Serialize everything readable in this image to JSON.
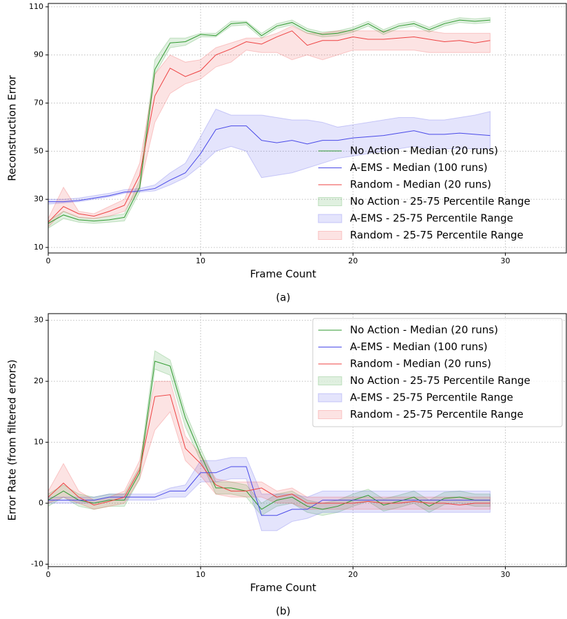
{
  "chart_data": [
    {
      "type": "line",
      "xlabel": "Frame Count",
      "ylabel": "Reconstruction Error",
      "caption": "(a)",
      "xlim": [
        0,
        34
      ],
      "ylim": [
        7.7,
        111.4
      ],
      "xticks": [
        0,
        10,
        20,
        30
      ],
      "yticks": [
        10,
        30,
        50,
        70,
        90,
        110
      ],
      "grid": true,
      "legend": "lower right",
      "legend_frame": false,
      "x": [
        0,
        1,
        2,
        3,
        4,
        5,
        6,
        7,
        8,
        9,
        10,
        11,
        12,
        13,
        14,
        15,
        16,
        17,
        18,
        19,
        20,
        21,
        22,
        23,
        24,
        25,
        26,
        27,
        28,
        29
      ],
      "series": [
        {
          "name": "No Action - Median (20 runs)",
          "color": "#2e9a2e",
          "values": [
            20,
            23.5,
            21.5,
            21,
            21.5,
            22.5,
            35,
            84,
            95,
            95.5,
            98.5,
            98,
            103,
            103.5,
            98,
            102,
            103.5,
            100,
            98.5,
            99,
            100.5,
            103,
            99.5,
            102,
            103,
            100.5,
            103,
            104.5,
            104,
            104.5
          ]
        },
        {
          "name": "A-EMS  - Median (100 runs)",
          "color": "#4848e8",
          "values": [
            29,
            29,
            29.5,
            30.5,
            31.5,
            33,
            33.5,
            34.5,
            38,
            41,
            49,
            59,
            60.5,
            60.5,
            54.5,
            53.5,
            54.5,
            53,
            54.5,
            54.5,
            55.5,
            56,
            56.5,
            57.5,
            58.5,
            57,
            57,
            57.5,
            57,
            56.5
          ]
        },
        {
          "name": "Random - Median (20 runs)",
          "color": "#ee4040",
          "values": [
            20.5,
            27,
            24,
            23,
            25,
            27.5,
            40,
            73,
            84.5,
            81,
            83.5,
            90,
            92.5,
            95.5,
            94.5,
            97.5,
            100,
            94,
            96,
            96,
            97.5,
            96.5,
            96.5,
            97,
            97.5,
            96.5,
            95.5,
            96,
            95,
            96
          ]
        }
      ],
      "bands": [
        {
          "name": "No Action - 25-75 Percentile Range",
          "color": "#2e9a2e",
          "low": [
            18,
            22,
            20.5,
            20,
            20.5,
            21,
            33,
            82,
            93,
            94,
            97.5,
            97.5,
            102,
            102.5,
            97,
            101,
            102.5,
            99,
            97.5,
            98,
            99.5,
            102,
            98.5,
            101,
            102,
            99.5,
            102,
            103.5,
            103,
            103.5
          ],
          "high": [
            21,
            25,
            22.5,
            22,
            23,
            24,
            38,
            88,
            97,
            97,
            99,
            99,
            104,
            104,
            99,
            103,
            104.5,
            101,
            99.5,
            100,
            101.5,
            104,
            100.5,
            103,
            104,
            101.5,
            104,
            105.5,
            105,
            105.5
          ]
        },
        {
          "name": "A-EMS  - 25-75 Percentile Range",
          "color": "#4848e8",
          "low": [
            28,
            28.5,
            29,
            30,
            31,
            32.5,
            33,
            33.5,
            36,
            39,
            44,
            50,
            52,
            50,
            39,
            40,
            41,
            43,
            45,
            47,
            48,
            49,
            50,
            51,
            52,
            51,
            51,
            51,
            51,
            51
          ],
          "high": [
            30,
            30,
            30.5,
            31.5,
            32.5,
            34,
            34.5,
            36,
            41,
            45,
            56,
            67.5,
            65,
            65,
            65,
            64,
            63,
            63,
            62,
            60,
            61,
            62,
            63,
            64,
            64,
            63,
            63,
            64,
            65,
            66.5
          ]
        },
        {
          "name": "Random - 25-75 Percentile Range",
          "color": "#ee4040",
          "low": [
            18.5,
            25,
            22.5,
            22,
            23,
            25,
            35,
            62,
            74,
            78,
            80,
            85,
            87,
            92,
            91,
            91,
            88,
            90,
            88,
            90,
            92,
            92,
            92,
            92,
            92,
            91,
            91,
            91,
            91,
            91
          ],
          "high": [
            22,
            35,
            25,
            24,
            27,
            30,
            45,
            82,
            90,
            87,
            88,
            93,
            95,
            97,
            97,
            99,
            102,
            99,
            99,
            100,
            100,
            100,
            100,
            100,
            100,
            100,
            99,
            99,
            99,
            99
          ]
        }
      ]
    },
    {
      "type": "line",
      "xlabel": "Frame Count",
      "ylabel": "Error Rate (from filtered errors)",
      "caption": "(b)",
      "xlim": [
        0,
        34
      ],
      "ylim": [
        -10.4,
        31.1
      ],
      "xticks": [
        0,
        10,
        20,
        30
      ],
      "yticks": [
        -10,
        0,
        10,
        20,
        30
      ],
      "grid": true,
      "legend": "upper right",
      "legend_frame": true,
      "x": [
        0,
        1,
        2,
        3,
        4,
        5,
        6,
        7,
        8,
        9,
        10,
        11,
        12,
        13,
        14,
        15,
        16,
        17,
        18,
        19,
        20,
        21,
        22,
        23,
        24,
        25,
        26,
        27,
        28,
        29
      ],
      "series": [
        {
          "name": "No Action - Median (20 runs)",
          "color": "#2e9a2e",
          "values": [
            0.5,
            2,
            0.5,
            0,
            0.5,
            0.5,
            5,
            23.3,
            22.5,
            14,
            8,
            2.5,
            2.5,
            2,
            -1,
            0.5,
            1,
            -0.5,
            -1,
            -0.5,
            0.5,
            1.3,
            -0.3,
            0.3,
            1,
            -0.5,
            0.8,
            1,
            0.5,
            0.5
          ]
        },
        {
          "name": "A-EMS  - Median (100 runs)",
          "color": "#4848e8",
          "values": [
            0.5,
            0.5,
            0.5,
            0.5,
            1,
            1,
            1,
            1,
            2,
            2,
            5,
            5,
            6,
            6,
            -2,
            -2,
            -1,
            -1,
            0.5,
            0.5,
            0.5,
            0.5,
            0.5,
            0.5,
            0.5,
            0.5,
            0.5,
            0.5,
            0.5,
            0.5
          ]
        },
        {
          "name": "Random - Median (20 runs)",
          "color": "#ee4040",
          "values": [
            1,
            3.3,
            1,
            -0.3,
            0.3,
            1,
            5.5,
            17.5,
            17.8,
            9,
            6.5,
            3,
            2,
            2,
            2.5,
            1,
            1.5,
            0,
            0,
            0,
            0,
            0.3,
            0,
            0,
            0.3,
            0,
            0,
            -0.3,
            0,
            0
          ]
        }
      ],
      "bands": [
        {
          "name": "No Action - 25-75 Percentile Range",
          "color": "#2e9a2e",
          "low": [
            -0.5,
            1,
            -0.5,
            -1,
            -0.5,
            -0.5,
            4,
            22,
            21,
            12.5,
            7,
            1.5,
            1.5,
            1,
            -2,
            -0.5,
            0,
            -1.5,
            -2,
            -1.5,
            -0.5,
            0.3,
            -1.3,
            -0.7,
            0,
            -1.5,
            -0.2,
            0,
            -0.5,
            -0.5
          ],
          "high": [
            1.5,
            3,
            1.5,
            1,
            1.5,
            1.5,
            6,
            25,
            23.5,
            15,
            9,
            3.5,
            3.5,
            3,
            0,
            1.5,
            2,
            0.5,
            0,
            0.5,
            1.5,
            2.3,
            0.7,
            1.3,
            2,
            0.5,
            1.8,
            2,
            1.5,
            1.5
          ]
        },
        {
          "name": "A-EMS  - 25-75 Percentile Range",
          "color": "#4848e8",
          "low": [
            0,
            0,
            0,
            0,
            0.5,
            0.5,
            0.5,
            0.5,
            1,
            1,
            3.5,
            3.5,
            4,
            4,
            -4.5,
            -4.5,
            -3,
            -2.5,
            -1.5,
            -1.5,
            -1.5,
            -1.5,
            -1.5,
            -1.5,
            -1.5,
            -1.5,
            -1.5,
            -1.5,
            -1.5,
            -1.5
          ],
          "high": [
            1,
            1,
            1,
            1,
            1.5,
            1.5,
            1.5,
            1.5,
            2.5,
            3,
            7,
            7,
            7.5,
            7.5,
            1.5,
            1.5,
            1.5,
            1,
            2,
            2,
            2,
            2,
            2,
            2,
            2,
            2,
            2,
            2,
            2,
            2
          ]
        },
        {
          "name": "Random - 25-75 Percentile Range",
          "color": "#ee4040",
          "low": [
            0,
            1,
            0,
            -1,
            -0.5,
            0,
            4,
            12,
            15,
            7,
            4.5,
            1.5,
            1,
            1,
            1,
            0,
            0,
            -1,
            -1,
            -1,
            -1,
            -1,
            -1,
            -1,
            -1,
            -1,
            -1,
            -1,
            -1,
            -1
          ],
          "high": [
            2,
            6.5,
            2,
            0.5,
            1,
            2,
            7,
            20,
            20,
            11,
            8,
            4,
            3.5,
            3.5,
            3.5,
            2,
            2.5,
            1,
            1,
            1,
            1,
            1,
            1,
            1,
            1,
            1,
            1,
            1,
            1,
            1
          ]
        }
      ]
    }
  ]
}
